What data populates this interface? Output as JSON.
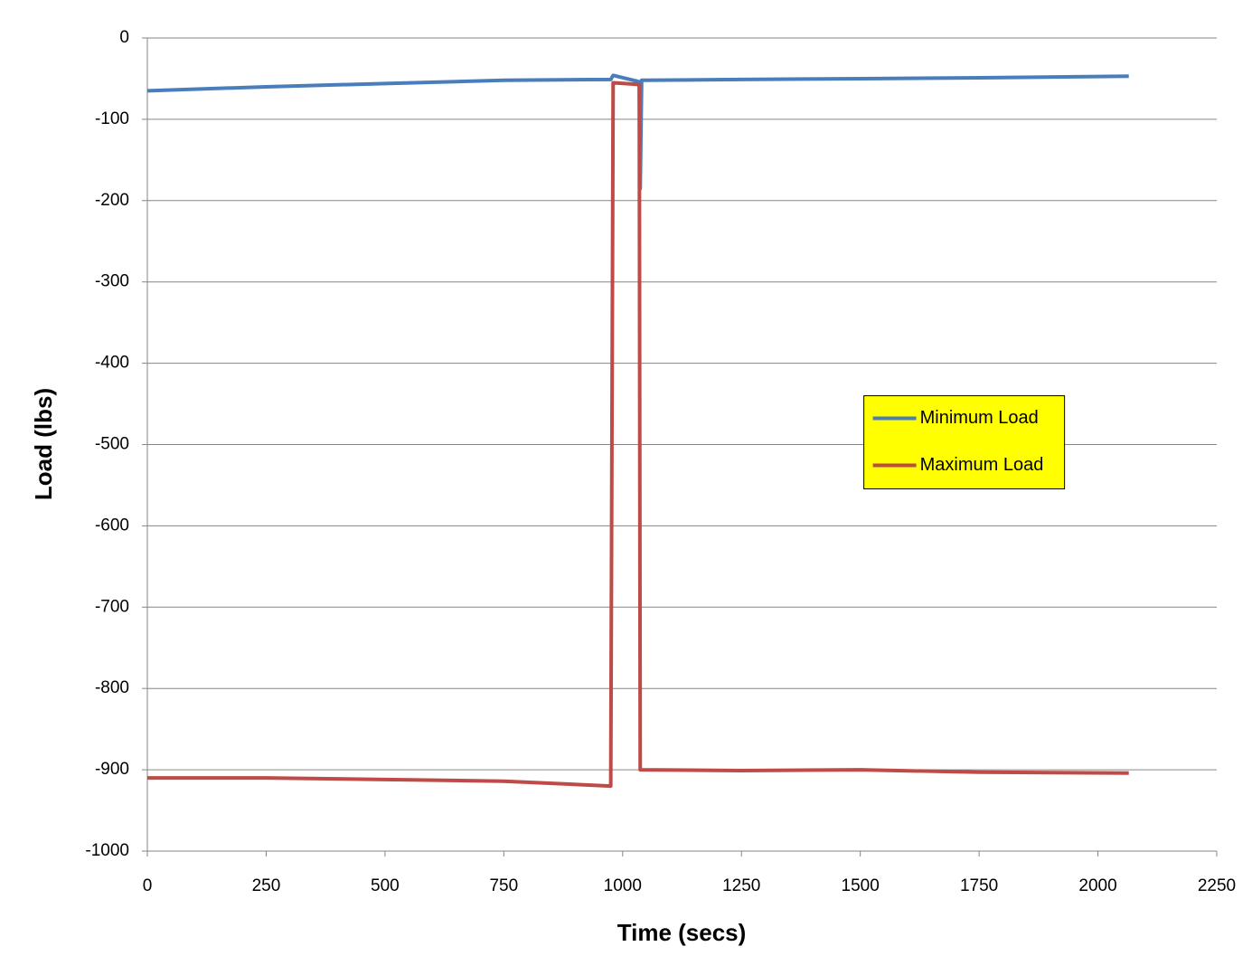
{
  "chart_data": {
    "type": "line",
    "x_label": "Time  (secs)",
    "y_label": "Load  (lbs)",
    "x": [
      0,
      250,
      500,
      750,
      975,
      980,
      1030,
      1035,
      1037,
      1040,
      1250,
      1500,
      1750,
      2065
    ],
    "series": [
      {
        "name": "Minimum Load",
        "color": "#4a7ebb",
        "values": [
          -65,
          -60,
          -56,
          -52,
          -51,
          -46,
          -53,
          -54,
          -185,
          -52,
          -51,
          -50,
          -49,
          -47
        ]
      },
      {
        "name": "Maximum Load",
        "color": "#be4b48",
        "values": [
          -910,
          -910,
          -912,
          -914,
          -920,
          -55,
          -57,
          -58,
          -900,
          -900,
          -901,
          -900,
          -903,
          -904
        ]
      }
    ],
    "xlim": [
      0,
      2250
    ],
    "xticks": [
      0,
      250,
      500,
      750,
      1000,
      1250,
      1500,
      1750,
      2000,
      2250
    ],
    "ylim": [
      -1000,
      0
    ],
    "yticks": [
      0,
      -100,
      -200,
      -300,
      -400,
      -500,
      -600,
      -700,
      -800,
      -900,
      -1000
    ],
    "grid": true,
    "legend_position": "right",
    "legend_background": "#ffff00"
  }
}
